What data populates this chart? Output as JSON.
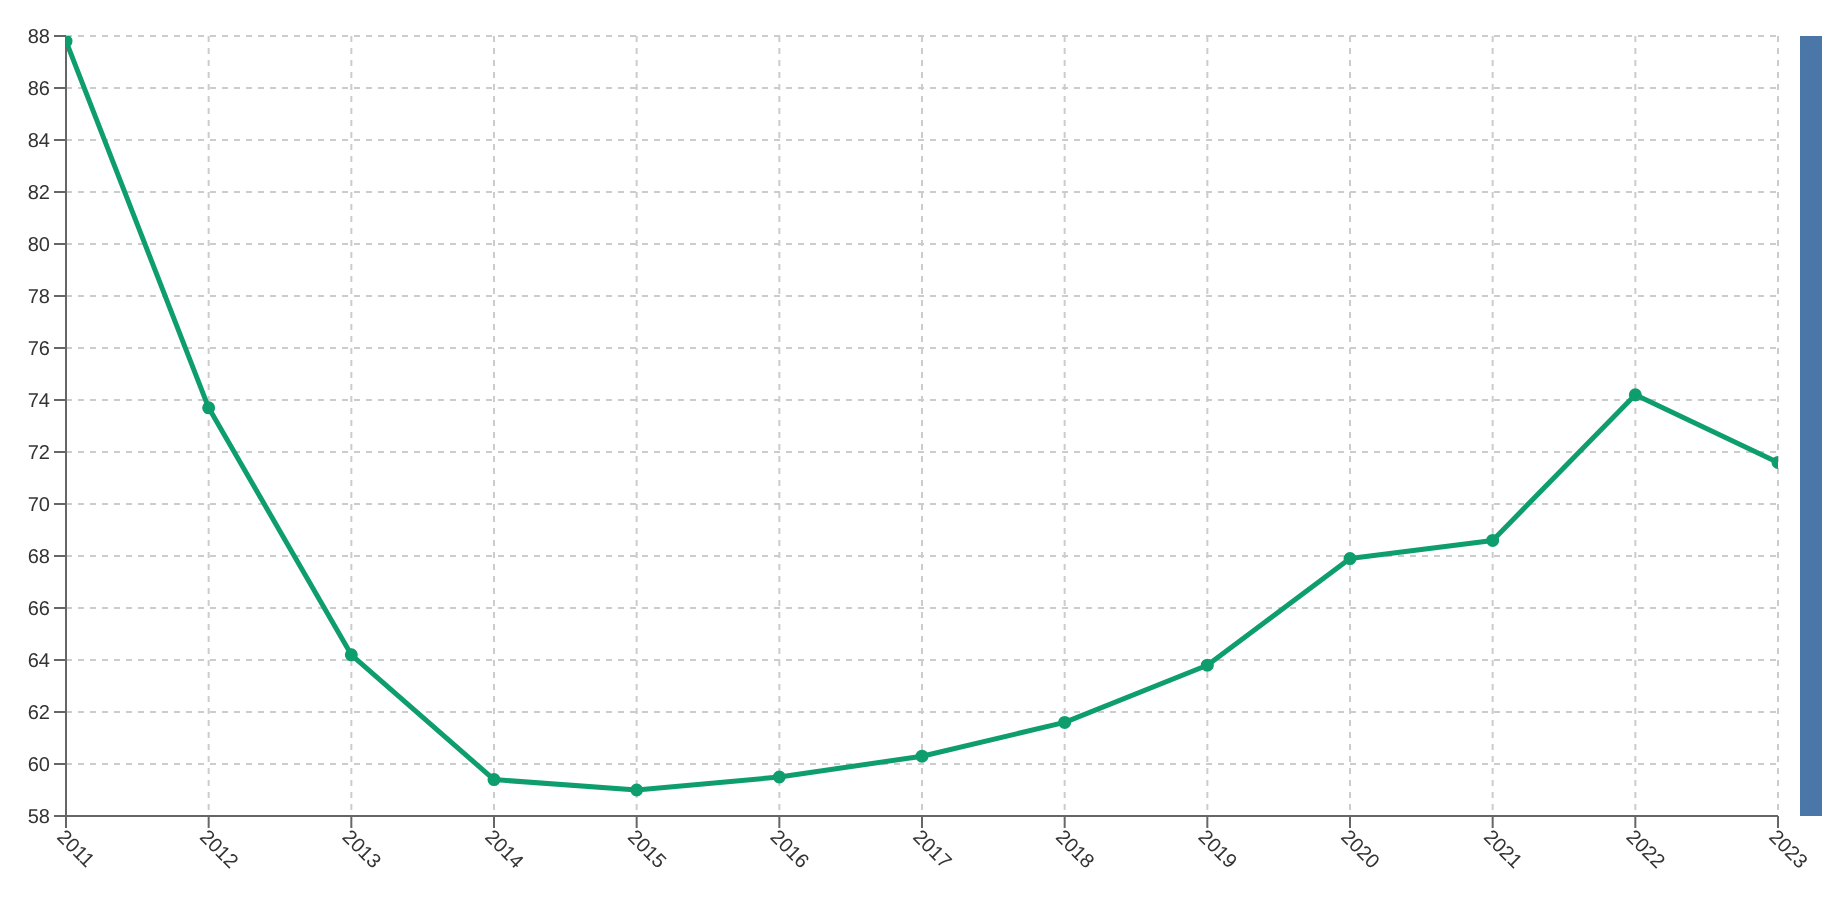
{
  "chart_data": {
    "type": "line",
    "categories": [
      "2011",
      "2012",
      "2013",
      "2014",
      "2015",
      "2016",
      "2017",
      "2018",
      "2019",
      "2020",
      "2021",
      "2022",
      "2023"
    ],
    "series": [
      {
        "color": "#0e9e6e",
        "values": [
          87.8,
          73.7,
          64.2,
          59.4,
          59.0,
          59.5,
          60.3,
          61.6,
          63.8,
          67.9,
          68.6,
          74.2,
          71.6
        ]
      }
    ],
    "ylim": [
      58,
      88
    ],
    "yticks": [
      58,
      60,
      62,
      64,
      66,
      68,
      70,
      72,
      74,
      76,
      78,
      80,
      82,
      84,
      86,
      88
    ],
    "grid": true,
    "marker": "circle",
    "line_style": "solid"
  }
}
